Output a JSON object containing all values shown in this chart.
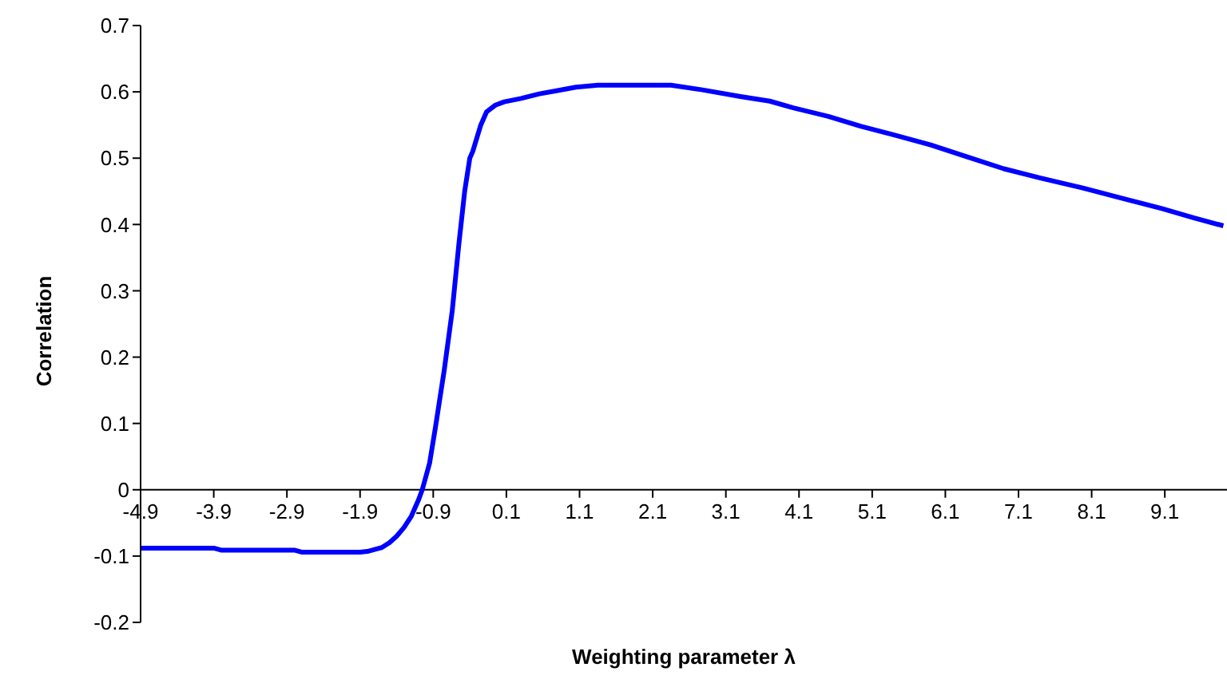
{
  "chart_data": {
    "type": "line",
    "xlabel": "Weighting parameter λ",
    "ylabel": "Correlation",
    "x": [
      -4.9,
      -4.5,
      -4.0,
      -3.9,
      -3.8,
      -3.4,
      -3.0,
      -2.8,
      -2.7,
      -2.3,
      -1.9,
      -1.8,
      -1.7,
      -1.6,
      -1.5,
      -1.4,
      -1.3,
      -1.2,
      -1.1,
      -1.05,
      -0.95,
      -0.87,
      -0.75,
      -0.64,
      -0.55,
      -0.47,
      -0.4,
      -0.36,
      -0.25,
      -0.17,
      -0.05,
      0.07,
      0.3,
      0.55,
      0.8,
      1.05,
      1.35,
      1.8,
      2.35,
      2.78,
      3.3,
      3.7,
      4.02,
      4.5,
      4.95,
      5.4,
      5.9,
      6.4,
      6.9,
      7.4,
      7.98,
      8.5,
      9.06,
      9.5,
      9.9
    ],
    "series": [
      {
        "color": "#0000ff",
        "values": [
          -0.088,
          -0.088,
          -0.088,
          -0.088,
          -0.091,
          -0.091,
          -0.091,
          -0.091,
          -0.094,
          -0.094,
          -0.094,
          -0.093,
          -0.09,
          -0.087,
          -0.08,
          -0.07,
          -0.057,
          -0.04,
          -0.015,
          0.0,
          0.04,
          0.094,
          0.18,
          0.27,
          0.37,
          0.45,
          0.5,
          0.51,
          0.55,
          0.57,
          0.58,
          0.585,
          0.59,
          0.597,
          0.602,
          0.607,
          0.61,
          0.61,
          0.61,
          0.603,
          0.593,
          0.586,
          0.576,
          0.563,
          0.548,
          0.535,
          0.52,
          0.502,
          0.484,
          0.47,
          0.455,
          0.44,
          0.424,
          0.41,
          0.398
        ]
      }
    ],
    "xlim": [
      -4.9,
      9.95
    ],
    "xticks": [
      -4.9,
      -3.9,
      -2.9,
      -1.9,
      -0.9,
      0.1,
      1.1,
      2.1,
      3.1,
      4.1,
      5.1,
      6.1,
      7.1,
      8.1,
      9.1
    ],
    "ylim": [
      -0.2,
      0.7
    ],
    "yticks": [
      -0.2,
      -0.1,
      0,
      0.1,
      0.2,
      0.3,
      0.4,
      0.5,
      0.6,
      0.7
    ],
    "marker": "none",
    "line_style": "solid"
  }
}
